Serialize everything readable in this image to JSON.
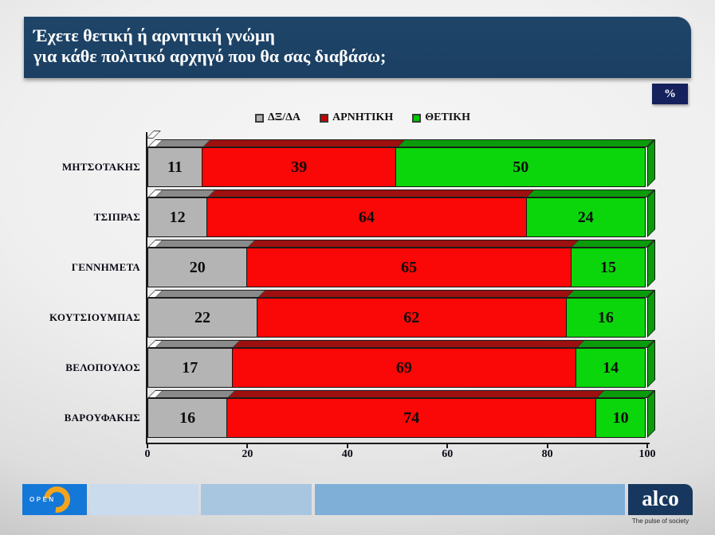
{
  "header": {
    "title_line1": "Έχετε θετική ή αρνητική γνώμη",
    "title_line2": "για κάθε πολιτικό αρχηγό που θα σας διαβάσω;"
  },
  "percent_badge": "%",
  "legend": [
    {
      "label": "ΔΞ/ΔΑ",
      "color": "#b0b0b0"
    },
    {
      "label": "ΑΡΝΗΤΙΚΗ",
      "color": "#c80000"
    },
    {
      "label": "ΘΕΤΙΚΗ",
      "color": "#00c800"
    }
  ],
  "chart_data": {
    "type": "bar",
    "orientation": "horizontal",
    "stacked": true,
    "categories": [
      "ΜΗΤΣΟΤΑΚΗΣ",
      "ΤΣΙΠΡΑΣ",
      "ΓΕΝΝΗΜΕΤΑ",
      "ΚΟΥΤΣΙΟΥΜΠΑΣ",
      "ΒΕΛΟΠΟΥΛΟΣ",
      "ΒΑΡΟΥΦΑΚΗΣ"
    ],
    "series": [
      {
        "name": "ΔΞ/ΔΑ",
        "color": "#b4b4b4",
        "dark_color": "#8a8a8a",
        "values": [
          11,
          12,
          20,
          22,
          17,
          16
        ]
      },
      {
        "name": "ΑΡΝΗΤΙΚΗ",
        "color": "#fa0707",
        "dark_color": "#9e0f0f",
        "values": [
          39,
          64,
          65,
          62,
          69,
          74
        ]
      },
      {
        "name": "ΘΕΤΙΚΗ",
        "color": "#0bd60b",
        "dark_color": "#0b9c0b",
        "values": [
          50,
          24,
          15,
          16,
          14,
          10
        ]
      }
    ],
    "x_ticks": [
      0,
      20,
      40,
      60,
      80,
      100
    ],
    "xlim": [
      0,
      100
    ],
    "grid": false,
    "legend_position": "top"
  },
  "footer": {
    "open_label": "OPEN",
    "alco_label": "alco",
    "alco_tagline": "The pulse of society"
  }
}
